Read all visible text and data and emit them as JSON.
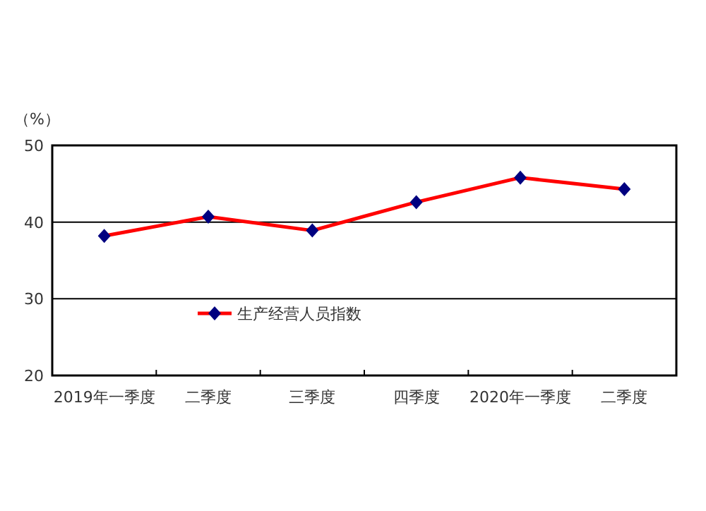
{
  "chart_data": {
    "type": "line",
    "ylabel": "（%）",
    "categories": [
      "2019年一季度",
      "二季度",
      "三季度",
      "四季度",
      "2020年一季度",
      "二季度"
    ],
    "series": [
      {
        "name": "生产经营人员指数",
        "color": "#ff0000",
        "values": [
          38.2,
          40.7,
          38.9,
          42.6,
          45.8,
          44.3
        ]
      }
    ],
    "ylim": [
      20,
      50
    ],
    "yticks": [
      20,
      30,
      40,
      50
    ],
    "grid": "y",
    "legend": "bottom",
    "marker": "diamond",
    "line_style": "solid"
  }
}
